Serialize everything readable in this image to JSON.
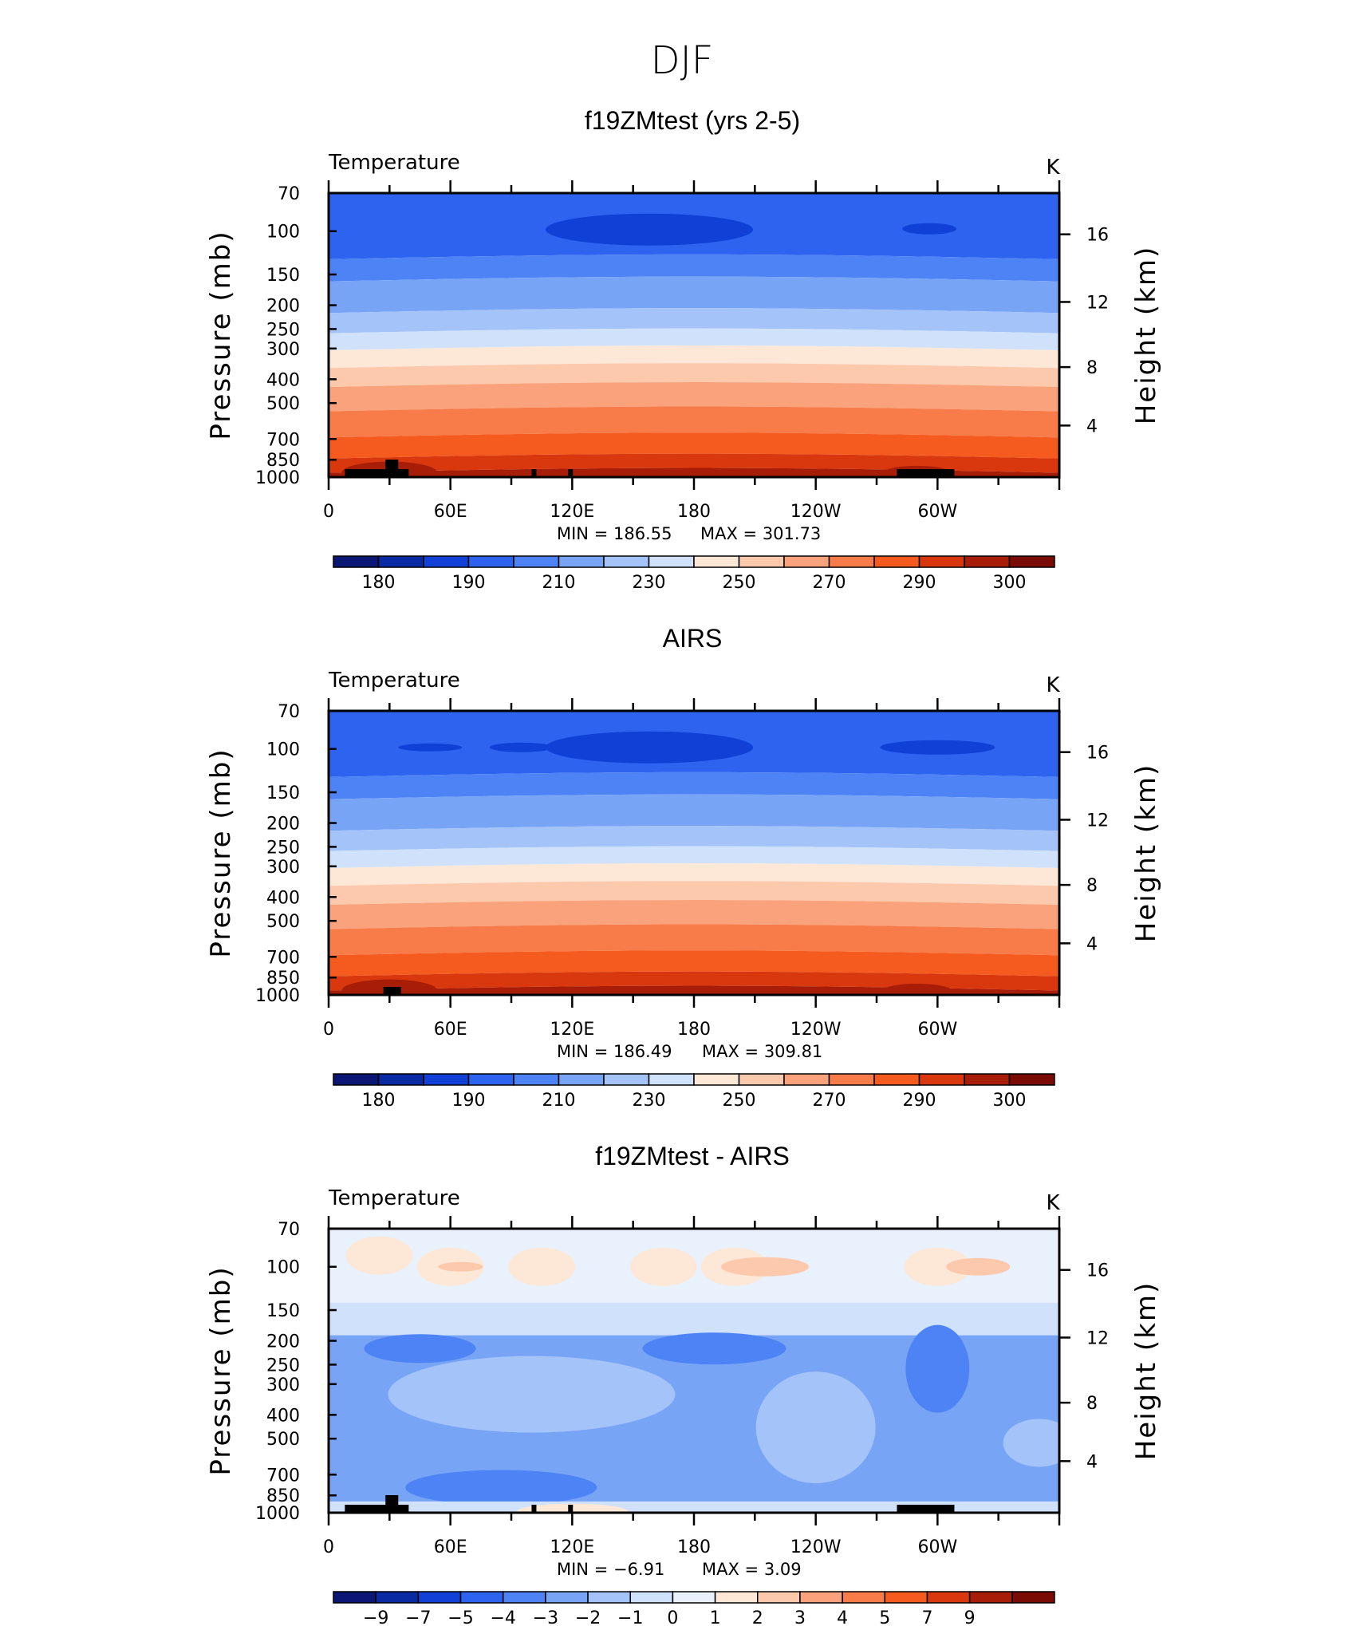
{
  "figure_title": "DJF",
  "colors": {
    "temperature_scale": [
      "#0a1775",
      "#0a2aa3",
      "#1040d6",
      "#2e63f0",
      "#4d83f4",
      "#78a4f6",
      "#a4c3f9",
      "#cfe1fb",
      "#fde8d8",
      "#fcc9ad",
      "#f9a27c",
      "#f77c4a",
      "#f55a1f",
      "#d9380f",
      "#a81d08",
      "#7a0b04"
    ],
    "difference_scale": [
      "#0a1775",
      "#0a2aa3",
      "#1040d6",
      "#2e63f0",
      "#4d83f4",
      "#78a4f6",
      "#a4c3f9",
      "#cfe1fb",
      "#e9f1fc",
      "#fde8d8",
      "#fcc9ad",
      "#f9a27c",
      "#f77c4a",
      "#f55a1f",
      "#d9380f",
      "#a81d08",
      "#7a0b04"
    ],
    "topography": "#000000"
  },
  "chart_data": [
    {
      "type": "heatmap",
      "panel_title": "f19ZMtest (yrs 2-5)",
      "variable": "Temperature",
      "units": "K",
      "ylabel": "Pressure (mb)",
      "ylabel_right": "Height (km)",
      "x_ticks": [
        "0",
        "60E",
        "120E",
        "180",
        "120W",
        "60W"
      ],
      "y_ticks": [
        "70",
        "100",
        "150",
        "200",
        "250",
        "300",
        "400",
        "500",
        "700",
        "850",
        "1000"
      ],
      "y_ticks_right": [
        "16",
        "12",
        "8",
        "4"
      ],
      "min_label": "MIN  =   186.55",
      "max_label": "MAX  =   301.73",
      "min": 186.55,
      "max": 301.73,
      "colorbar_labels": [
        "180",
        "190",
        "210",
        "230",
        "250",
        "270",
        "290",
        "300"
      ],
      "levels": [
        180,
        185,
        190,
        200,
        210,
        220,
        230,
        240,
        250,
        260,
        270,
        280,
        290,
        295,
        300
      ],
      "ylim": [
        1000,
        70
      ],
      "xlim": [
        0,
        360
      ]
    },
    {
      "type": "heatmap",
      "panel_title": "AIRS",
      "variable": "Temperature",
      "units": "K",
      "ylabel": "Pressure (mb)",
      "ylabel_right": "Height (km)",
      "x_ticks": [
        "0",
        "60E",
        "120E",
        "180",
        "120W",
        "60W"
      ],
      "y_ticks": [
        "70",
        "100",
        "150",
        "200",
        "250",
        "300",
        "400",
        "500",
        "700",
        "850",
        "1000"
      ],
      "y_ticks_right": [
        "16",
        "12",
        "8",
        "4"
      ],
      "min_label": "MIN  =   186.49",
      "max_label": "MAX  =   309.81",
      "min": 186.49,
      "max": 309.81,
      "colorbar_labels": [
        "180",
        "190",
        "210",
        "230",
        "250",
        "270",
        "290",
        "300"
      ],
      "levels": [
        180,
        185,
        190,
        200,
        210,
        220,
        230,
        240,
        250,
        260,
        270,
        280,
        290,
        295,
        300
      ],
      "ylim": [
        1000,
        70
      ],
      "xlim": [
        0,
        360
      ]
    },
    {
      "type": "heatmap",
      "panel_title": "f19ZMtest - AIRS",
      "variable": "Temperature",
      "units": "K",
      "ylabel": "Pressure (mb)",
      "ylabel_right": "Height (km)",
      "x_ticks": [
        "0",
        "60E",
        "120E",
        "180",
        "120W",
        "60W"
      ],
      "y_ticks": [
        "70",
        "100",
        "150",
        "200",
        "250",
        "300",
        "400",
        "500",
        "700",
        "850",
        "1000"
      ],
      "y_ticks_right": [
        "16",
        "12",
        "8",
        "4"
      ],
      "min_label": "MIN  =    −6.91",
      "max_label": "MAX  =       3.09",
      "min": -6.91,
      "max": 3.09,
      "colorbar_labels": [
        "−9",
        "−7",
        "−5",
        "−4",
        "−3",
        "−2",
        "−1",
        "0",
        "1",
        "2",
        "3",
        "4",
        "5",
        "7",
        "9"
      ],
      "levels": [
        -9,
        -7,
        -5,
        -4,
        -3,
        -2,
        -1,
        0,
        1,
        2,
        3,
        4,
        5,
        7,
        9
      ],
      "ylim": [
        1000,
        70
      ],
      "xlim": [
        0,
        360
      ]
    }
  ]
}
